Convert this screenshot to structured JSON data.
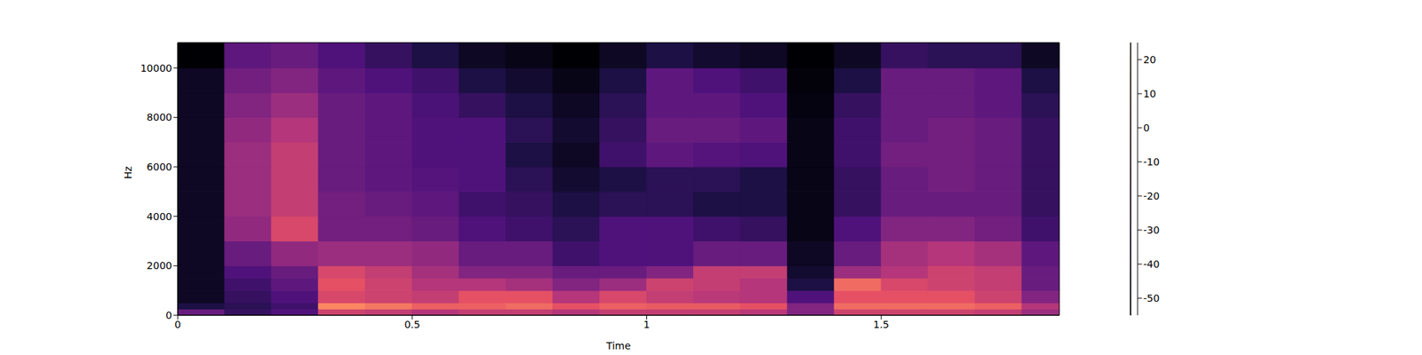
{
  "chart_data": {
    "type": "heatmap",
    "xlabel": "Time",
    "ylabel": "Hz",
    "xlim": [
      0,
      1.88
    ],
    "xticks": [
      0,
      0.5,
      1,
      1.5
    ],
    "ylim": [
      0,
      11025
    ],
    "yticks": [
      0,
      2000,
      4000,
      6000,
      8000,
      10000
    ],
    "x_edges": [
      0,
      0.1,
      0.2,
      0.3,
      0.4,
      0.5,
      0.6,
      0.7,
      0.8,
      0.9,
      1.0,
      1.1,
      1.2,
      1.3,
      1.4,
      1.5,
      1.6,
      1.7,
      1.8,
      1.88
    ],
    "y_edges": [
      0,
      250,
      500,
      1000,
      1500,
      2000,
      3000,
      4000,
      5000,
      6000,
      7000,
      8000,
      9000,
      10000,
      11025
    ],
    "cells": [
      [
        -30,
        -40,
        -35,
        -10,
        -12,
        -15,
        -12,
        -12,
        -15,
        -12,
        -12,
        -12,
        -14,
        -25,
        -10,
        -10,
        -10,
        -12,
        -20
      ],
      [
        -45,
        -42,
        -38,
        5,
        2,
        -2,
        -2,
        0,
        -5,
        -2,
        -3,
        -3,
        -5,
        -25,
        0,
        0,
        0,
        -2,
        -15
      ],
      [
        -50,
        -40,
        -35,
        -8,
        -10,
        -12,
        -5,
        -5,
        -15,
        -8,
        -12,
        -14,
        -15,
        -35,
        -5,
        -5,
        -5,
        -10,
        -25
      ],
      [
        -50,
        -38,
        -32,
        -5,
        -10,
        -15,
        -15,
        -18,
        -25,
        -20,
        -10,
        -12,
        -15,
        -45,
        0,
        -8,
        -10,
        -12,
        -30
      ],
      [
        -50,
        -35,
        -30,
        -8,
        -12,
        -18,
        -25,
        -25,
        -30,
        -30,
        -25,
        -12,
        -12,
        -48,
        -20,
        -15,
        -10,
        -12,
        -30
      ],
      [
        -50,
        -30,
        -22,
        -20,
        -20,
        -22,
        -30,
        -30,
        -38,
        -35,
        -35,
        -30,
        -30,
        -50,
        -30,
        -18,
        -15,
        -18,
        -32
      ],
      [
        -50,
        -22,
        -8,
        -28,
        -28,
        -30,
        -35,
        -38,
        -42,
        -35,
        -35,
        -38,
        -40,
        -52,
        -35,
        -25,
        -25,
        -28,
        -38
      ],
      [
        -50,
        -20,
        -12,
        -28,
        -30,
        -32,
        -38,
        -40,
        -45,
        -42,
        -42,
        -45,
        -45,
        -52,
        -40,
        -30,
        -30,
        -30,
        -40
      ],
      [
        -50,
        -20,
        -12,
        -30,
        -32,
        -34,
        -35,
        -42,
        -48,
        -45,
        -42,
        -42,
        -45,
        -52,
        -40,
        -30,
        -28,
        -30,
        -40
      ],
      [
        -50,
        -20,
        -12,
        -30,
        -32,
        -35,
        -35,
        -45,
        -50,
        -38,
        -32,
        -34,
        -35,
        -52,
        -38,
        -28,
        -28,
        -30,
        -40
      ],
      [
        -50,
        -22,
        -15,
        -30,
        -32,
        -35,
        -35,
        -42,
        -48,
        -40,
        -30,
        -30,
        -32,
        -52,
        -38,
        -30,
        -28,
        -30,
        -40
      ],
      [
        -50,
        -25,
        -20,
        -30,
        -32,
        -36,
        -40,
        -45,
        -50,
        -42,
        -32,
        -32,
        -35,
        -53,
        -40,
        -30,
        -30,
        -32,
        -42
      ],
      [
        -50,
        -28,
        -25,
        -32,
        -35,
        -38,
        -45,
        -48,
        -52,
        -45,
        -32,
        -35,
        -38,
        -54,
        -45,
        -30,
        -30,
        -32,
        -45
      ],
      [
        -55,
        -32,
        -30,
        -35,
        -40,
        -45,
        -50,
        -52,
        -55,
        -50,
        -45,
        -48,
        -50,
        -55,
        -50,
        -40,
        -42,
        -42,
        -50
      ]
    ],
    "colorbar_range": [
      -55,
      25
    ],
    "colorbar_ticks": [
      -50,
      -40,
      -30,
      -20,
      -10,
      0,
      10,
      20
    ]
  }
}
